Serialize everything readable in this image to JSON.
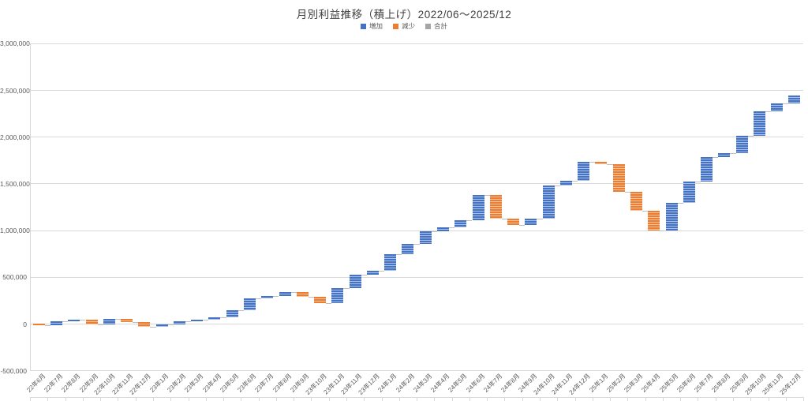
{
  "title": "月別利益推移（積上げ）2022/06～2025/12",
  "legend": {
    "items": [
      {
        "label": "増加",
        "color": "#4472C4"
      },
      {
        "label": "減少",
        "color": "#ED7D31"
      },
      {
        "label": "合計",
        "color": "#A5A5A5"
      }
    ]
  },
  "chart_data": {
    "type": "bar",
    "subtype": "waterfall",
    "title": "月別利益推移（積上げ）2022/06～2025/12",
    "xlabel": "",
    "ylabel": "",
    "ylim": [
      -500000,
      3000000
    ],
    "grid": true,
    "legend_position": "top",
    "categories": [
      "22年6月",
      "22年7月",
      "22年8月",
      "22年9月",
      "22年10月",
      "22年11月",
      "22年12月",
      "23年1月",
      "23年2月",
      "23年3月",
      "23年4月",
      "23年5月",
      "23年6月",
      "23年7月",
      "23年8月",
      "23年9月",
      "23年10月",
      "23年11月",
      "23年11月",
      "23年12月",
      "24年1月",
      "24年2月",
      "24年3月",
      "24年4月",
      "24年5月",
      "24年6月",
      "24年7月",
      "24年8月",
      "24年9月",
      "24年10月",
      "24年11月",
      "24年12月",
      "25年1月",
      "25年2月",
      "25年3月",
      "25年4月",
      "25年5月",
      "25年6月",
      "25年7月",
      "25年8月",
      "25年9月",
      "25年10月",
      "25年11月",
      "25年12月"
    ],
    "series": [
      {
        "name": "月別利益",
        "values": [
          -15000,
          40000,
          15000,
          -50000,
          65000,
          -35000,
          -55000,
          25000,
          35000,
          15000,
          30000,
          70000,
          130000,
          25000,
          45000,
          -50000,
          -70000,
          160000,
          140000,
          45000,
          180000,
          110000,
          130000,
          45000,
          80000,
          265000,
          -250000,
          -70000,
          70000,
          350000,
          55000,
          200000,
          -20000,
          -300000,
          -200000,
          -210000,
          290000,
          230000,
          265000,
          40000,
          185000,
          265000,
          85000,
          85000
        ]
      }
    ],
    "y_ticks": [
      {
        "label": "3,000,000",
        "value": 3000000
      },
      {
        "label": "2,500,000",
        "value": 2500000
      },
      {
        "label": "2,000,000",
        "value": 2000000
      },
      {
        "label": "1,500,000",
        "value": 1500000
      },
      {
        "label": "1,000,000",
        "value": 1000000
      },
      {
        "label": "500,000",
        "value": 500000
      },
      {
        "label": "0",
        "value": 0
      },
      {
        "label": "-500,000",
        "value": -500000
      }
    ],
    "colors": {
      "increase": "#4472C4",
      "decrease": "#ED7D31",
      "total": "#A5A5A5",
      "gridline": "#D9D9D9",
      "connector": "#BFBFBF",
      "axis_text": "#595959",
      "title_text": "#404040"
    }
  }
}
